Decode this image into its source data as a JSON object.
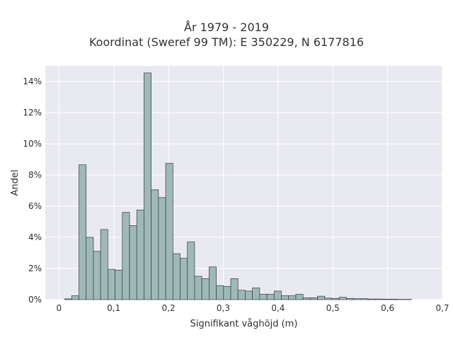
{
  "chart_data": {
    "type": "bar",
    "title": "År 1979 - 2019",
    "subtitle": "Koordinat (Sweref 99 TM): E 350229, N 6177816",
    "xlabel": "Signifikant våghöjd (m)",
    "ylabel": "Andel",
    "xlim": [
      -0.025,
      0.7
    ],
    "ylim": [
      0,
      15
    ],
    "x_ticks": [
      {
        "value": 0,
        "label": "0"
      },
      {
        "value": 0.1,
        "label": "0,1"
      },
      {
        "value": 0.2,
        "label": "0,2"
      },
      {
        "value": 0.3,
        "label": "0,3"
      },
      {
        "value": 0.4,
        "label": "0,4"
      },
      {
        "value": 0.5,
        "label": "0,5"
      },
      {
        "value": 0.6,
        "label": "0,6"
      },
      {
        "value": 0.7,
        "label": "0,7"
      }
    ],
    "y_ticks": [
      {
        "value": 0,
        "label": "0%"
      },
      {
        "value": 2,
        "label": "2%"
      },
      {
        "value": 4,
        "label": "4%"
      },
      {
        "value": 6,
        "label": "6%"
      },
      {
        "value": 8,
        "label": "8%"
      },
      {
        "value": 10,
        "label": "10%"
      },
      {
        "value": 12,
        "label": "12%"
      },
      {
        "value": 14,
        "label": "14%"
      }
    ],
    "bin_width": 0.0132,
    "bins_start": [
      0.01,
      0.0232,
      0.0364,
      0.0496,
      0.0628,
      0.076,
      0.0892,
      0.1024,
      0.1156,
      0.1288,
      0.142,
      0.1552,
      0.1684,
      0.1816,
      0.1948,
      0.208,
      0.2212,
      0.2344,
      0.2476,
      0.2608,
      0.274,
      0.2872,
      0.3004,
      0.3136,
      0.3268,
      0.34,
      0.3532,
      0.3664,
      0.3796,
      0.3928,
      0.406,
      0.4192,
      0.4324,
      0.4456,
      0.4588,
      0.472,
      0.4852,
      0.4984,
      0.5116,
      0.5248,
      0.538,
      0.5512,
      0.5644,
      0.5776,
      0.5908,
      0.604,
      0.6172,
      0.6304
    ],
    "values": [
      0.05,
      0.25,
      8.65,
      4.0,
      3.1,
      4.5,
      1.95,
      1.9,
      5.6,
      4.75,
      5.75,
      14.55,
      7.05,
      6.55,
      8.75,
      2.95,
      2.65,
      3.7,
      1.5,
      1.35,
      2.1,
      0.9,
      0.85,
      1.35,
      0.6,
      0.55,
      0.75,
      0.35,
      0.35,
      0.55,
      0.25,
      0.25,
      0.35,
      0.12,
      0.12,
      0.22,
      0.1,
      0.08,
      0.15,
      0.08,
      0.06,
      0.06,
      0.04,
      0.04,
      0.03,
      0.03,
      0.02,
      0.02
    ],
    "colors": {
      "plot_background": "#e9e9f1",
      "grid": "#ffffff",
      "bar_fill": "#9fb8b8",
      "bar_edge": "#3a3a3a"
    },
    "grid": true
  }
}
